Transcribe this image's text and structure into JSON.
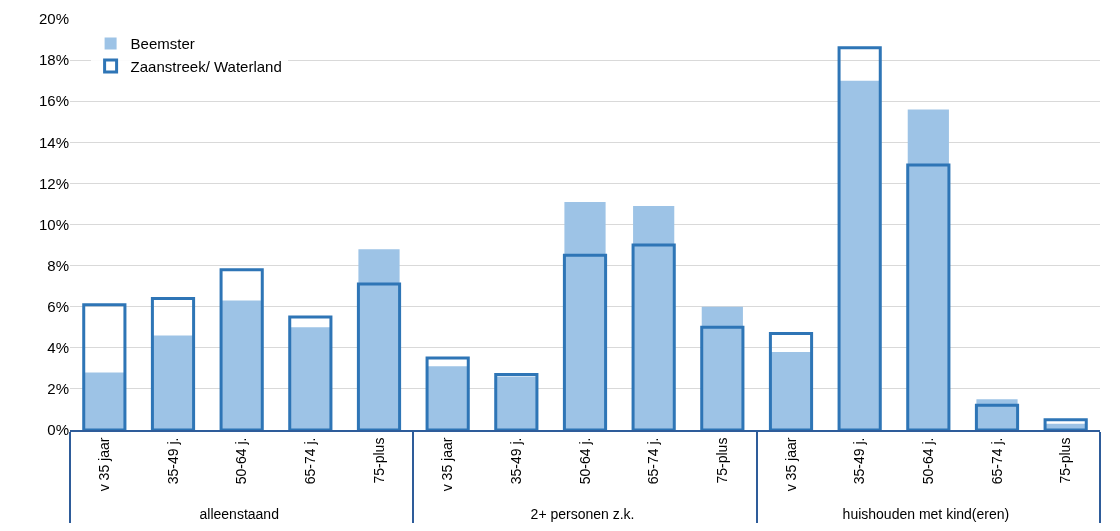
{
  "chart_data": {
    "type": "bar",
    "categories": [
      "v 35 jaar",
      "35-49 j.",
      "50-64 j.",
      "65-74 j.",
      "75-plus",
      "v 35 jaar",
      "35-49 j.",
      "50-64 j.",
      "65-74 j.",
      "75-plus",
      "v 35 jaar",
      "35-49 j.",
      "50-64 j.",
      "65-74 j.",
      "75-plus"
    ],
    "annotations": [
      "alleenstaand",
      "2+ personen z.k.",
      "huishouden met kind(eren)"
    ],
    "series": [
      {
        "name": "Beemster",
        "color": "#9dc3e6",
        "values": [
          2.8,
          4.6,
          6.3,
          5.0,
          8.8,
          3.1,
          2.6,
          11.1,
          10.9,
          6.0,
          3.8,
          17.0,
          15.6,
          1.5,
          0.3
        ]
      },
      {
        "name": "Zaanstreek/ Waterland",
        "color": "#2e75b6",
        "values": [
          6.1,
          6.4,
          7.8,
          5.5,
          7.1,
          3.5,
          2.7,
          8.5,
          9.0,
          5.0,
          4.7,
          18.6,
          12.9,
          1.2,
          0.5
        ]
      }
    ],
    "ylim": [
      0,
      20
    ],
    "yticks": [
      {
        "value": 0,
        "label": "0%"
      },
      {
        "value": 2,
        "label": "2%"
      },
      {
        "value": 4,
        "label": "4%"
      },
      {
        "value": 6,
        "label": "6%"
      },
      {
        "value": 8,
        "label": "8%"
      },
      {
        "value": 10,
        "label": "10%"
      },
      {
        "value": 12,
        "label": "12%"
      },
      {
        "value": 14,
        "label": "14%"
      },
      {
        "value": 16,
        "label": "16%"
      },
      {
        "value": 18,
        "label": "18%"
      },
      {
        "value": 20,
        "label": "20%"
      }
    ],
    "grid": "y",
    "legend": "top left"
  }
}
